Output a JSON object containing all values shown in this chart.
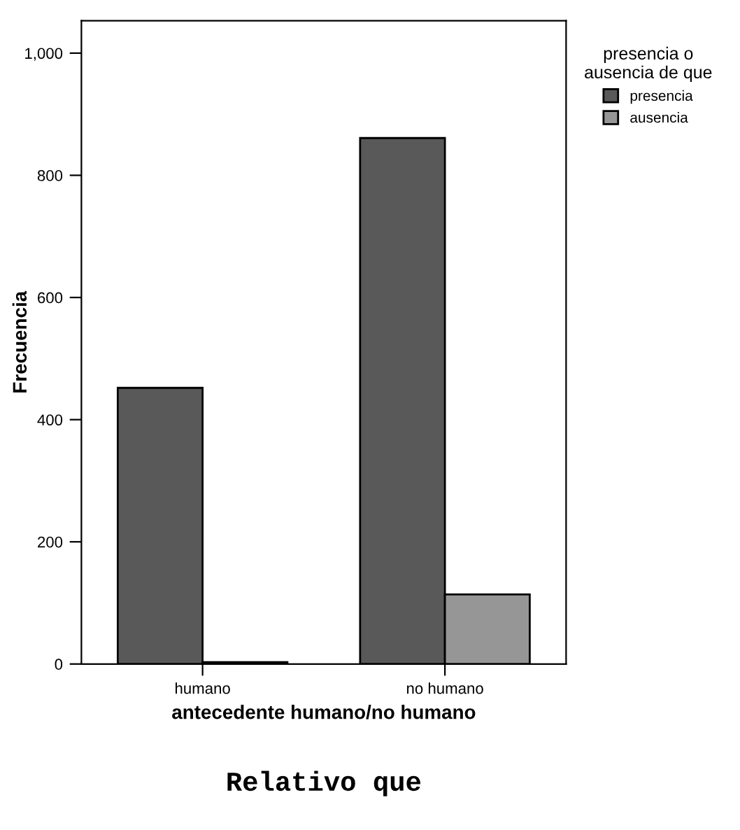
{
  "chart_data": {
    "type": "bar",
    "title": "Relativo que",
    "xlabel": "antecedente humano/no humano",
    "ylabel": "Frecuencia",
    "legend_title": "presencia o\nausencia de que",
    "categories": [
      "humano",
      "no humano"
    ],
    "series": [
      {
        "name": "presencia",
        "color": "#595959",
        "values": [
          452,
          861
        ]
      },
      {
        "name": "ausencia",
        "color": "#969696",
        "values": [
          3,
          114
        ]
      }
    ],
    "ylim": [
      0,
      1053
    ],
    "yticks": [
      0,
      200,
      400,
      600,
      800,
      {
        "value": 1000,
        "label": "1,000"
      }
    ],
    "grid": false,
    "legend": "top right"
  }
}
